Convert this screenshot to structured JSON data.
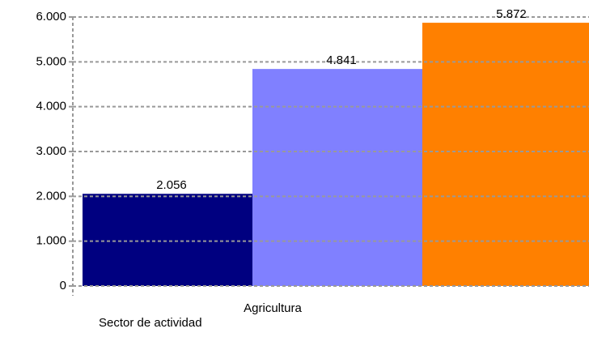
{
  "chart_data": {
    "type": "bar",
    "categories": [
      "Agricultura"
    ],
    "series": [
      {
        "color": "#000080",
        "values": [
          2056
        ],
        "value_labels": [
          "2.056"
        ]
      },
      {
        "color": "#8080ff",
        "values": [
          4841
        ],
        "value_labels": [
          "4.841"
        ]
      },
      {
        "color": "#ff8000",
        "values": [
          5872
        ],
        "value_labels": [
          "5.872"
        ]
      }
    ],
    "ylim": [
      0,
      6000
    ],
    "yticks": [
      0,
      {
        "value": 1000,
        "label": "1.000"
      },
      {
        "value": 2000,
        "label": "2.000"
      },
      {
        "value": 3000,
        "label": "3.000"
      },
      {
        "value": 4000,
        "label": "4.000"
      },
      {
        "value": 5000,
        "label": "5.000"
      },
      {
        "value": 6000,
        "label": "6.000"
      }
    ],
    "xlabel": "Sector de actividad",
    "grid": true
  }
}
